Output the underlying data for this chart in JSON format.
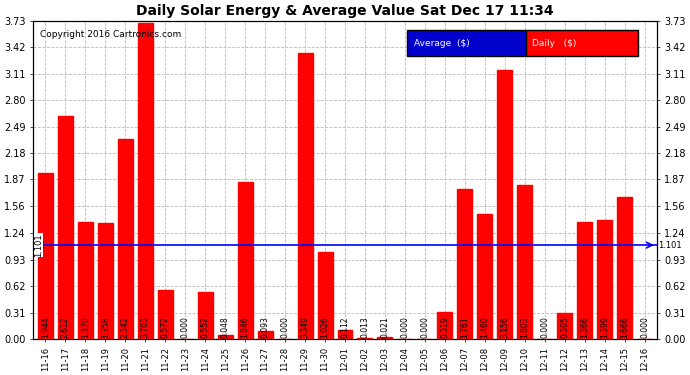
{
  "title": "Daily Solar Energy & Average Value Sat Dec 17 11:34",
  "copyright": "Copyright 2016 Cartronics.com",
  "bar_color": "#FF0000",
  "avg_line_color": "#0000FF",
  "avg_value": 1.101,
  "background_color": "#FFFFFF",
  "grid_color": "#BBBBBB",
  "yticks": [
    0.0,
    0.31,
    0.62,
    0.93,
    1.24,
    1.56,
    1.87,
    2.18,
    2.49,
    2.8,
    3.11,
    3.42,
    3.73
  ],
  "ylim": [
    0,
    3.73
  ],
  "categories": [
    "11-16",
    "11-17",
    "11-18",
    "11-19",
    "11-20",
    "11-21",
    "11-22",
    "11-23",
    "11-24",
    "11-25",
    "11-26",
    "11-27",
    "11-28",
    "11-29",
    "11-30",
    "12-01",
    "12-02",
    "12-03",
    "12-04",
    "12-05",
    "12-06",
    "12-07",
    "12-08",
    "12-09",
    "12-10",
    "12-11",
    "12-12",
    "12-13",
    "12-14",
    "12-15",
    "12-16"
  ],
  "values": [
    1.944,
    2.612,
    1.37,
    1.358,
    2.342,
    3.703,
    0.572,
    0.0,
    0.552,
    0.048,
    1.846,
    0.093,
    0.0,
    3.349,
    1.026,
    0.112,
    0.013,
    0.021,
    0.0,
    0.0,
    0.319,
    1.761,
    1.46,
    3.156,
    1.803,
    0.0,
    0.305,
    1.366,
    1.399,
    1.666,
    0.0
  ],
  "legend_avg_bg": "#0000CC",
  "legend_daily_bg": "#FF0000",
  "legend_avg_text": "Average  ($)",
  "legend_daily_text": "Daily   ($)",
  "label_fontsize": 5.5,
  "tick_fontsize": 7,
  "title_fontsize": 10,
  "copyright_fontsize": 6.5
}
